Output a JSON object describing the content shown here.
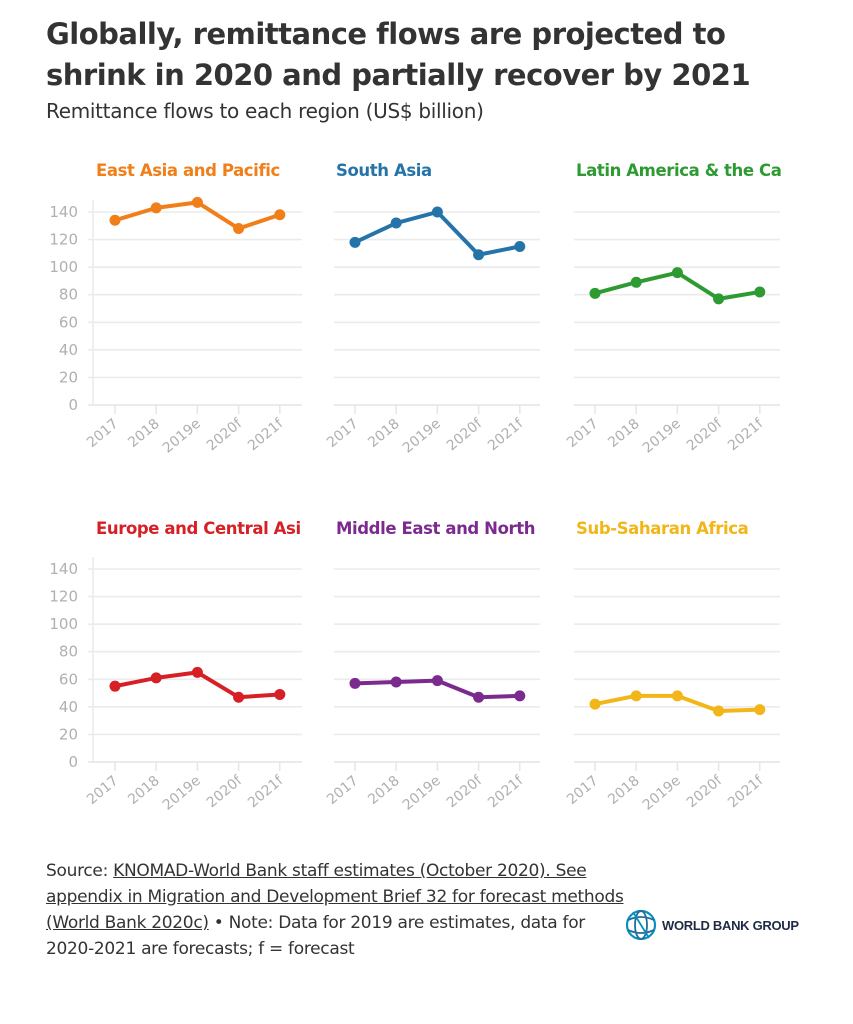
{
  "title": "Globally, remittance flows are projected to shrink in 2020 and partially recover by 2021",
  "subtitle": "Remittance flows to each region (US$ billion)",
  "footer": {
    "source_prefix": "Source: ",
    "source_link": "KNOMAD-World Bank staff estimates (October 2020). See appendix in Migration and Development Brief 32 for forecast methods (World Bank 2020c)",
    "note": " • Note: Data for 2019 are estimates, data for 2020-2021 are forecasts; f = forecast"
  },
  "logo": {
    "text": "WORLD BANK GROUP",
    "icon": "globe-icon"
  },
  "chart_data": [
    {
      "type": "line",
      "title": "East Asia and Pacific",
      "color": "#f07f1a",
      "categories": [
        "2017",
        "2018",
        "2019e",
        "2020f",
        "2021f"
      ],
      "values": [
        134,
        143,
        147,
        128,
        138
      ],
      "ylim": [
        0,
        140
      ],
      "yticks": [
        "0",
        "20",
        "40",
        "60",
        "80",
        "100",
        "120",
        "140"
      ],
      "show_yticks": true,
      "grid": true
    },
    {
      "type": "line",
      "title": "South Asia",
      "color": "#2574a9",
      "categories": [
        "2017",
        "2018",
        "2019e",
        "2020f",
        "2021f"
      ],
      "values": [
        118,
        132,
        140,
        109,
        115
      ],
      "ylim": [
        0,
        140
      ],
      "yticks": [],
      "show_yticks": false,
      "grid": true
    },
    {
      "type": "line",
      "title": "Latin America & the Ca",
      "color": "#2e9a32",
      "categories": [
        "2017",
        "2018",
        "2019e",
        "2020f",
        "2021f"
      ],
      "values": [
        81,
        89,
        96,
        77,
        82
      ],
      "ylim": [
        0,
        140
      ],
      "yticks": [],
      "show_yticks": false,
      "grid": true
    },
    {
      "type": "line",
      "title": "Europe and Central Asi",
      "color": "#d62026",
      "categories": [
        "2017",
        "2018",
        "2019e",
        "2020f",
        "2021f"
      ],
      "values": [
        55,
        61,
        65,
        47,
        49
      ],
      "ylim": [
        0,
        140
      ],
      "yticks": [
        "0",
        "20",
        "40",
        "60",
        "80",
        "100",
        "120",
        "140"
      ],
      "show_yticks": true,
      "grid": true
    },
    {
      "type": "line",
      "title": "Middle East and North",
      "color": "#7b2a8e",
      "categories": [
        "2017",
        "2018",
        "2019e",
        "2020f",
        "2021f"
      ],
      "values": [
        57,
        58,
        59,
        47,
        48
      ],
      "ylim": [
        0,
        140
      ],
      "yticks": [],
      "show_yticks": false,
      "grid": true
    },
    {
      "type": "line",
      "title": "Sub-Saharan Africa",
      "color": "#f2b619",
      "categories": [
        "2017",
        "2018",
        "2019e",
        "2020f",
        "2021f"
      ],
      "values": [
        42,
        48,
        48,
        37,
        38
      ],
      "ylim": [
        0,
        140
      ],
      "yticks": [],
      "show_yticks": false,
      "grid": true
    }
  ]
}
